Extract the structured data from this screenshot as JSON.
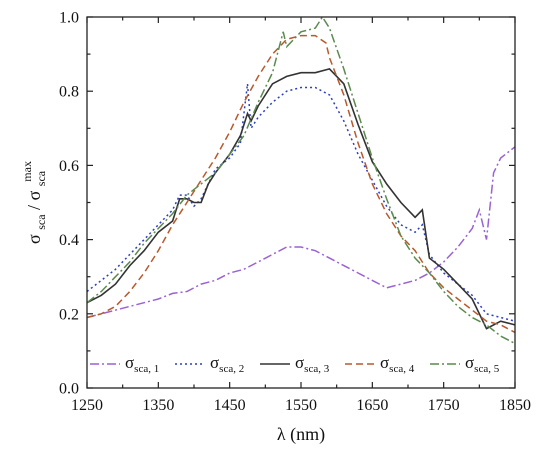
{
  "chart_data": {
    "type": "line",
    "xlabel": "λ (nm)",
    "ylabel": {
      "main": "σ",
      "sub": "sca",
      "slash": "/",
      "main2": "σ",
      "sub2": "sca",
      "sup2": "max"
    },
    "xlim": [
      1250,
      1850
    ],
    "ylim": [
      0.0,
      1.0
    ],
    "xticks": [
      "1250",
      "1350",
      "1450",
      "1550",
      "1650",
      "1750",
      "1850"
    ],
    "yticks": [
      "0.0",
      "0.2",
      "0.4",
      "0.6",
      "0.8",
      "1.0"
    ],
    "grid": false,
    "legend_position": "bottom-inside",
    "series": [
      {
        "name": "σsca, 1",
        "symbol": "σ",
        "subscript": "sca, 1",
        "color": "#9a62d4",
        "dash": "dashdot",
        "x": [
          1250,
          1270,
          1290,
          1310,
          1330,
          1350,
          1370,
          1390,
          1410,
          1430,
          1450,
          1470,
          1490,
          1510,
          1530,
          1550,
          1570,
          1590,
          1610,
          1630,
          1650,
          1670,
          1690,
          1710,
          1730,
          1750,
          1770,
          1790,
          1800,
          1810,
          1820,
          1830,
          1850
        ],
        "y": [
          0.19,
          0.2,
          0.21,
          0.22,
          0.23,
          0.24,
          0.255,
          0.26,
          0.28,
          0.29,
          0.31,
          0.32,
          0.34,
          0.36,
          0.38,
          0.38,
          0.37,
          0.35,
          0.33,
          0.31,
          0.29,
          0.27,
          0.28,
          0.29,
          0.31,
          0.34,
          0.38,
          0.43,
          0.48,
          0.4,
          0.58,
          0.62,
          0.65
        ]
      },
      {
        "name": "σsca, 2",
        "symbol": "σ",
        "subscript": "sca, 2",
        "color": "#2c3fc4",
        "dash": "dot",
        "x": [
          1250,
          1270,
          1290,
          1310,
          1330,
          1350,
          1370,
          1380,
          1390,
          1400,
          1410,
          1420,
          1430,
          1450,
          1465,
          1475,
          1480,
          1490,
          1510,
          1530,
          1550,
          1570,
          1590,
          1610,
          1630,
          1650,
          1670,
          1690,
          1710,
          1720,
          1730,
          1750,
          1770,
          1790,
          1810,
          1830,
          1850
        ],
        "y": [
          0.26,
          0.29,
          0.32,
          0.36,
          0.4,
          0.44,
          0.48,
          0.52,
          0.52,
          0.49,
          0.51,
          0.55,
          0.59,
          0.62,
          0.66,
          0.82,
          0.7,
          0.73,
          0.77,
          0.8,
          0.81,
          0.81,
          0.79,
          0.72,
          0.63,
          0.56,
          0.49,
          0.44,
          0.42,
          0.44,
          0.36,
          0.31,
          0.28,
          0.25,
          0.2,
          0.19,
          0.18
        ]
      },
      {
        "name": "σsca, 3",
        "symbol": "σ",
        "subscript": "sca, 3",
        "color": "#333333",
        "dash": "solid",
        "x": [
          1250,
          1270,
          1290,
          1310,
          1330,
          1350,
          1370,
          1380,
          1390,
          1400,
          1410,
          1420,
          1430,
          1450,
          1465,
          1475,
          1480,
          1490,
          1510,
          1530,
          1550,
          1570,
          1590,
          1610,
          1630,
          1650,
          1670,
          1690,
          1710,
          1720,
          1730,
          1750,
          1770,
          1790,
          1810,
          1830,
          1850
        ],
        "y": [
          0.23,
          0.25,
          0.28,
          0.33,
          0.37,
          0.42,
          0.45,
          0.51,
          0.51,
          0.5,
          0.5,
          0.55,
          0.58,
          0.63,
          0.68,
          0.74,
          0.72,
          0.76,
          0.82,
          0.84,
          0.85,
          0.85,
          0.86,
          0.82,
          0.71,
          0.61,
          0.55,
          0.5,
          0.46,
          0.48,
          0.35,
          0.32,
          0.28,
          0.24,
          0.16,
          0.18,
          0.17
        ]
      },
      {
        "name": "σsca, 4",
        "symbol": "σ",
        "subscript": "sca, 4",
        "color": "#b8592c",
        "dash": "dash",
        "x": [
          1250,
          1270,
          1290,
          1310,
          1330,
          1350,
          1370,
          1390,
          1410,
          1430,
          1450,
          1470,
          1490,
          1510,
          1530,
          1550,
          1570,
          1585,
          1590,
          1610,
          1630,
          1650,
          1670,
          1690,
          1710,
          1730,
          1750,
          1770,
          1790,
          1810,
          1830,
          1850
        ],
        "y": [
          0.19,
          0.2,
          0.22,
          0.26,
          0.31,
          0.37,
          0.44,
          0.5,
          0.56,
          0.62,
          0.69,
          0.77,
          0.84,
          0.9,
          0.94,
          0.95,
          0.95,
          0.93,
          0.89,
          0.79,
          0.66,
          0.55,
          0.47,
          0.41,
          0.37,
          0.31,
          0.27,
          0.24,
          0.21,
          0.18,
          0.17,
          0.15
        ]
      },
      {
        "name": "σsca, 5",
        "symbol": "σ",
        "subscript": "sca, 5",
        "color": "#5b8a4e",
        "dash": "dashdot",
        "x": [
          1250,
          1270,
          1290,
          1310,
          1330,
          1350,
          1370,
          1390,
          1410,
          1430,
          1450,
          1470,
          1490,
          1510,
          1525,
          1530,
          1550,
          1570,
          1580,
          1590,
          1610,
          1630,
          1650,
          1670,
          1690,
          1710,
          1730,
          1750,
          1770,
          1790,
          1810,
          1830,
          1850
        ],
        "y": [
          0.23,
          0.26,
          0.3,
          0.34,
          0.39,
          0.43,
          0.47,
          0.52,
          0.55,
          0.58,
          0.63,
          0.68,
          0.77,
          0.85,
          0.96,
          0.92,
          0.96,
          0.97,
          1.0,
          0.97,
          0.86,
          0.74,
          0.62,
          0.51,
          0.41,
          0.35,
          0.31,
          0.26,
          0.22,
          0.19,
          0.17,
          0.14,
          0.12
        ]
      }
    ]
  }
}
